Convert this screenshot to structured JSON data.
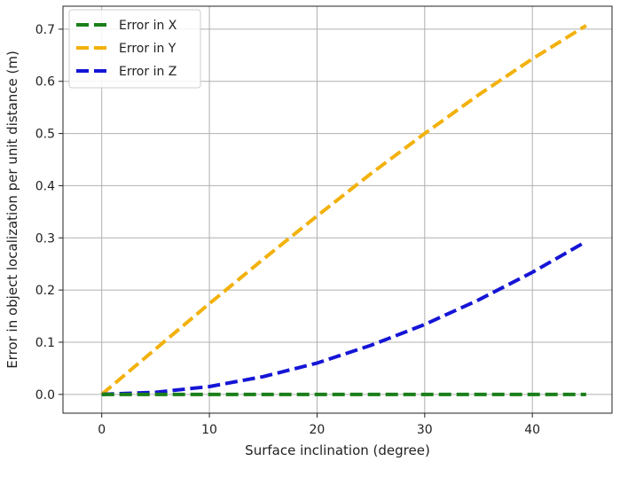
{
  "chart_data": {
    "type": "line",
    "title": "",
    "xlabel": "Surface inclination (degree)",
    "ylabel": "Error in object localization per unit distance (m)",
    "xlim": [
      -3.6,
      47.4
    ],
    "ylim": [
      -0.036,
      0.744
    ],
    "xticks": [
      0,
      10,
      20,
      30,
      40
    ],
    "yticks": [
      0.0,
      0.1,
      0.2,
      0.3,
      0.4,
      0.5,
      0.6,
      0.7
    ],
    "ytick_labels": [
      "0.0",
      "0.1",
      "0.2",
      "0.3",
      "0.4",
      "0.5",
      "0.6",
      "0.7"
    ],
    "grid": true,
    "legend": "top-left",
    "x": [
      0,
      5,
      10,
      15,
      20,
      25,
      30,
      35,
      40,
      45
    ],
    "series": [
      {
        "name": "Error in X",
        "color": "#1a7f1a",
        "values": [
          0,
          0,
          0,
          0,
          0,
          0,
          0,
          0,
          0,
          0
        ]
      },
      {
        "name": "Error in Y",
        "color": "#f2b10c",
        "values": [
          0,
          0.087,
          0.174,
          0.259,
          0.342,
          0.423,
          0.5,
          0.574,
          0.643,
          0.707
        ]
      },
      {
        "name": "Error in Z",
        "color": "#1515d6",
        "values": [
          0,
          0.004,
          0.015,
          0.034,
          0.06,
          0.094,
          0.134,
          0.181,
          0.234,
          0.293
        ]
      }
    ]
  }
}
